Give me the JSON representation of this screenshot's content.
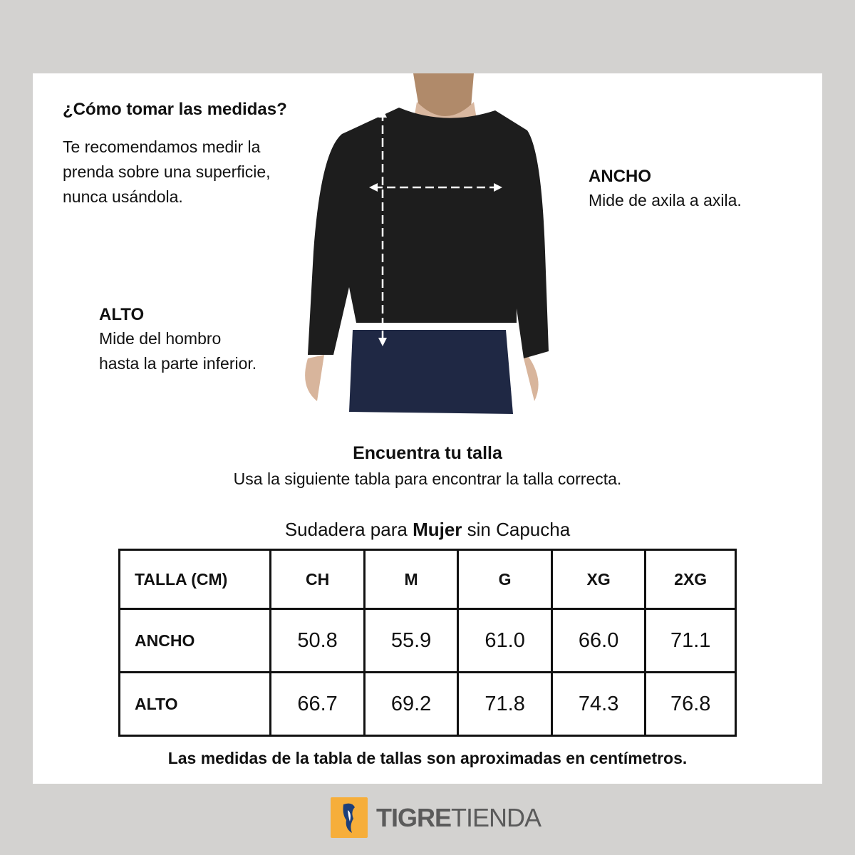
{
  "howto": {
    "title": "¿Cómo tomar las medidas?",
    "lines": [
      "Te recomendamos medir la",
      "prenda sobre una superficie,",
      "nunca usándola."
    ]
  },
  "ancho": {
    "title": "ANCHO",
    "desc": "Mide de axila a axila."
  },
  "alto": {
    "title": "ALTO",
    "lines": [
      "Mide del hombro",
      "hasta la parte inferior."
    ]
  },
  "find": {
    "title": "Encuentra tu talla",
    "subtitle": "Usa la siguiente tabla para encontrar la talla correcta."
  },
  "table": {
    "caption_pre": "Sudadera para ",
    "caption_bold": "Mujer",
    "caption_post": " sin Capucha",
    "headers": [
      "TALLA (CM)",
      "CH",
      "M",
      "G",
      "XG",
      "2XG"
    ],
    "rows": [
      {
        "label": "ANCHO",
        "values": [
          "50.8",
          "55.9",
          "61.0",
          "66.0",
          "71.1"
        ]
      },
      {
        "label": "ALTO",
        "values": [
          "66.7",
          "69.2",
          "71.8",
          "74.3",
          "76.8"
        ]
      }
    ]
  },
  "note": "Las medidas de la tabla de tallas son aproximadas en centímetros.",
  "brand": {
    "bold": "TIGRE",
    "light": "TIENDA",
    "color": "#f6ae3a"
  }
}
